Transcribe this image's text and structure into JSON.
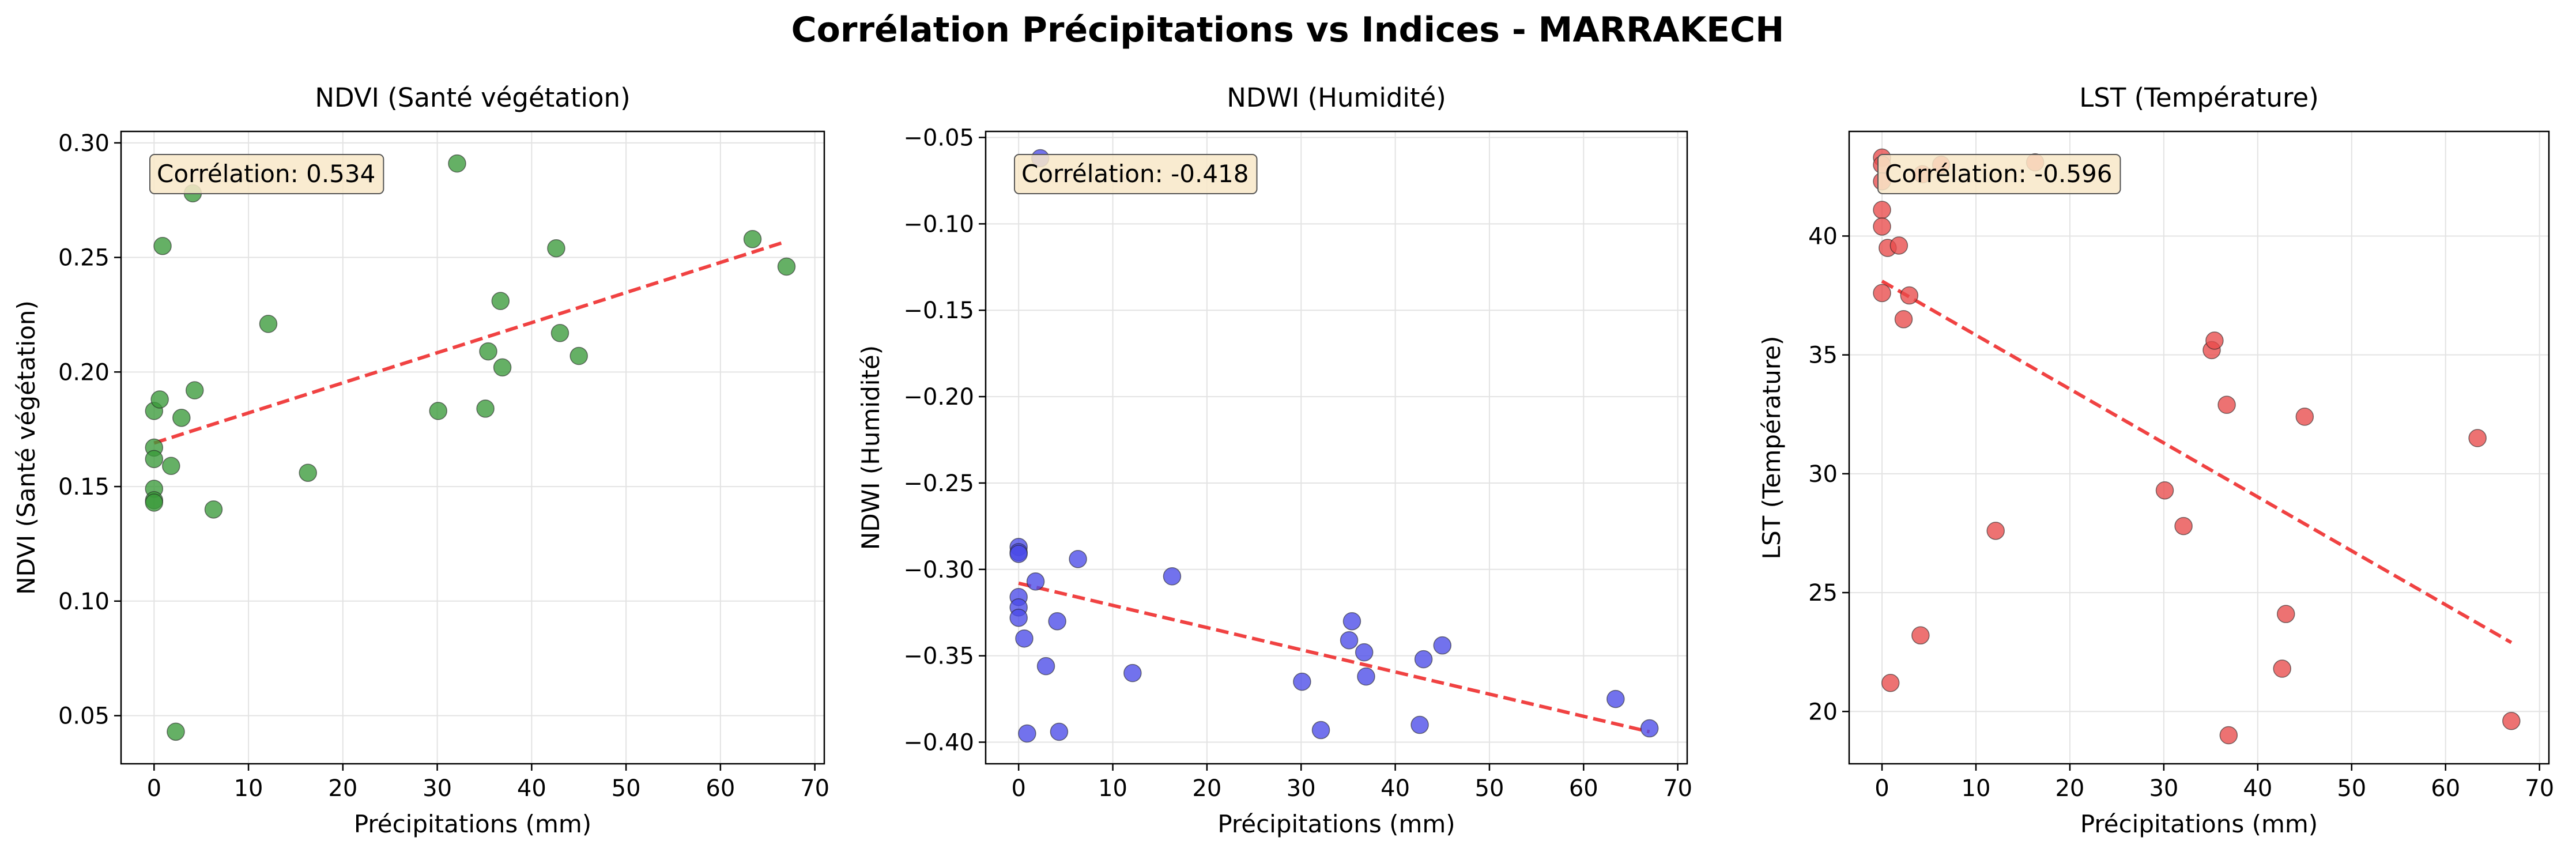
{
  "figure": {
    "title": "Corrélation Précipitations vs Indices - MARRAKECH"
  },
  "colors": {
    "ndvi_points": "#3a9a3a",
    "ndwi_points": "#4a4ae8",
    "lst_points": "#e84a4a",
    "trend_line": "#ee2222",
    "corr_box_fill": "#f8e8c8",
    "grid": "#e3e3e3"
  },
  "chart_data": [
    {
      "type": "scatter",
      "title": "NDVI (Santé végétation)",
      "xlabel": "Précipitations (mm)",
      "ylabel": "NDVI (Santé végétation)",
      "xlim": [
        -3.5,
        71
      ],
      "ylim": [
        0.029,
        0.305
      ],
      "xticks": [
        0,
        10,
        20,
        30,
        40,
        50,
        60,
        70
      ],
      "yticks": [
        0.05,
        0.1,
        0.15,
        0.2,
        0.25,
        0.3
      ],
      "ytick_labels": [
        "0.05",
        "0.10",
        "0.15",
        "0.20",
        "0.25",
        "0.30"
      ],
      "grid": true,
      "annotation": "Corrélation: 0.534",
      "color_key": "ndvi_points",
      "points": [
        {
          "x": 0,
          "y": 0.183
        },
        {
          "x": 0,
          "y": 0.167
        },
        {
          "x": 0,
          "y": 0.162
        },
        {
          "x": 0,
          "y": 0.149
        },
        {
          "x": 0,
          "y": 0.144
        },
        {
          "x": 0,
          "y": 0.143
        },
        {
          "x": 0.6,
          "y": 0.188
        },
        {
          "x": 0.9,
          "y": 0.255
        },
        {
          "x": 1.8,
          "y": 0.159
        },
        {
          "x": 2.3,
          "y": 0.043
        },
        {
          "x": 2.9,
          "y": 0.18
        },
        {
          "x": 4.1,
          "y": 0.278
        },
        {
          "x": 4.3,
          "y": 0.192
        },
        {
          "x": 6.3,
          "y": 0.14
        },
        {
          "x": 12.1,
          "y": 0.221
        },
        {
          "x": 16.3,
          "y": 0.156
        },
        {
          "x": 30.1,
          "y": 0.183
        },
        {
          "x": 32.1,
          "y": 0.291
        },
        {
          "x": 35.1,
          "y": 0.184
        },
        {
          "x": 35.4,
          "y": 0.209
        },
        {
          "x": 36.7,
          "y": 0.231
        },
        {
          "x": 36.9,
          "y": 0.202
        },
        {
          "x": 42.6,
          "y": 0.254
        },
        {
          "x": 43.0,
          "y": 0.217
        },
        {
          "x": 45.0,
          "y": 0.207
        },
        {
          "x": 63.4,
          "y": 0.258
        },
        {
          "x": 67.0,
          "y": 0.246
        }
      ],
      "trend": {
        "x": [
          0,
          67
        ],
        "y": [
          0.169,
          0.257
        ]
      }
    },
    {
      "type": "scatter",
      "title": "NDWI (Humidité)",
      "xlabel": "Précipitations (mm)",
      "ylabel": "NDWI (Humidité)",
      "xlim": [
        -3.5,
        71
      ],
      "ylim": [
        -0.4125,
        -0.0465
      ],
      "xticks": [
        0,
        10,
        20,
        30,
        40,
        50,
        60,
        70
      ],
      "yticks": [
        -0.4,
        -0.35,
        -0.3,
        -0.25,
        -0.2,
        -0.15,
        -0.1,
        -0.05
      ],
      "ytick_labels": [
        "−0.40",
        "−0.35",
        "−0.30",
        "−0.25",
        "−0.20",
        "−0.15",
        "−0.10",
        "−0.05"
      ],
      "grid": true,
      "annotation": "Corrélation: -0.418",
      "color_key": "ndwi_points",
      "points": [
        {
          "x": 0,
          "y": -0.287
        },
        {
          "x": 0,
          "y": -0.29
        },
        {
          "x": 0,
          "y": -0.291
        },
        {
          "x": 0,
          "y": -0.316
        },
        {
          "x": 0,
          "y": -0.322
        },
        {
          "x": 0,
          "y": -0.328
        },
        {
          "x": 0.6,
          "y": -0.34
        },
        {
          "x": 0.9,
          "y": -0.395
        },
        {
          "x": 1.8,
          "y": -0.307
        },
        {
          "x": 2.3,
          "y": -0.062
        },
        {
          "x": 2.9,
          "y": -0.356
        },
        {
          "x": 4.1,
          "y": -0.33
        },
        {
          "x": 4.3,
          "y": -0.394
        },
        {
          "x": 6.3,
          "y": -0.294
        },
        {
          "x": 12.1,
          "y": -0.36
        },
        {
          "x": 16.3,
          "y": -0.304
        },
        {
          "x": 30.1,
          "y": -0.365
        },
        {
          "x": 32.1,
          "y": -0.393
        },
        {
          "x": 35.1,
          "y": -0.341
        },
        {
          "x": 35.4,
          "y": -0.33
        },
        {
          "x": 36.7,
          "y": -0.348
        },
        {
          "x": 36.9,
          "y": -0.362
        },
        {
          "x": 42.6,
          "y": -0.39
        },
        {
          "x": 43.0,
          "y": -0.352
        },
        {
          "x": 45.0,
          "y": -0.344
        },
        {
          "x": 63.4,
          "y": -0.375
        },
        {
          "x": 67.0,
          "y": -0.392
        }
      ],
      "trend": {
        "x": [
          0,
          67
        ],
        "y": [
          -0.308,
          -0.394
        ]
      }
    },
    {
      "type": "scatter",
      "title": "LST (Température)",
      "xlabel": "Précipitations (mm)",
      "ylabel": "LST (Température)",
      "xlim": [
        -3.5,
        71
      ],
      "ylim": [
        17.8,
        44.4
      ],
      "xticks": [
        0,
        10,
        20,
        30,
        40,
        50,
        60,
        70
      ],
      "yticks": [
        20,
        25,
        30,
        35,
        40
      ],
      "ytick_labels": [
        "20",
        "25",
        "30",
        "35",
        "40"
      ],
      "grid": true,
      "annotation": "Corrélation: -0.596",
      "color_key": "lst_points",
      "points": [
        {
          "x": 0,
          "y": 43.3
        },
        {
          "x": 0,
          "y": 43.0
        },
        {
          "x": 0,
          "y": 42.3
        },
        {
          "x": 0,
          "y": 41.1
        },
        {
          "x": 0,
          "y": 40.4
        },
        {
          "x": 0,
          "y": 37.6
        },
        {
          "x": 0.6,
          "y": 39.5
        },
        {
          "x": 0.9,
          "y": 21.2
        },
        {
          "x": 1.8,
          "y": 39.6
        },
        {
          "x": 2.3,
          "y": 36.5
        },
        {
          "x": 2.9,
          "y": 37.5
        },
        {
          "x": 4.1,
          "y": 23.2
        },
        {
          "x": 4.3,
          "y": 42.6
        },
        {
          "x": 6.3,
          "y": 43.0
        },
        {
          "x": 12.1,
          "y": 27.6
        },
        {
          "x": 16.3,
          "y": 43.1
        },
        {
          "x": 30.1,
          "y": 29.3
        },
        {
          "x": 32.1,
          "y": 27.8
        },
        {
          "x": 35.1,
          "y": 35.2
        },
        {
          "x": 35.4,
          "y": 35.6
        },
        {
          "x": 36.7,
          "y": 32.9
        },
        {
          "x": 36.9,
          "y": 19.0
        },
        {
          "x": 42.6,
          "y": 21.8
        },
        {
          "x": 43.0,
          "y": 24.1
        },
        {
          "x": 45.0,
          "y": 32.4
        },
        {
          "x": 63.4,
          "y": 31.5
        },
        {
          "x": 67.0,
          "y": 19.6
        }
      ],
      "trend": {
        "x": [
          0,
          67
        ],
        "y": [
          38.1,
          22.9
        ]
      }
    }
  ]
}
